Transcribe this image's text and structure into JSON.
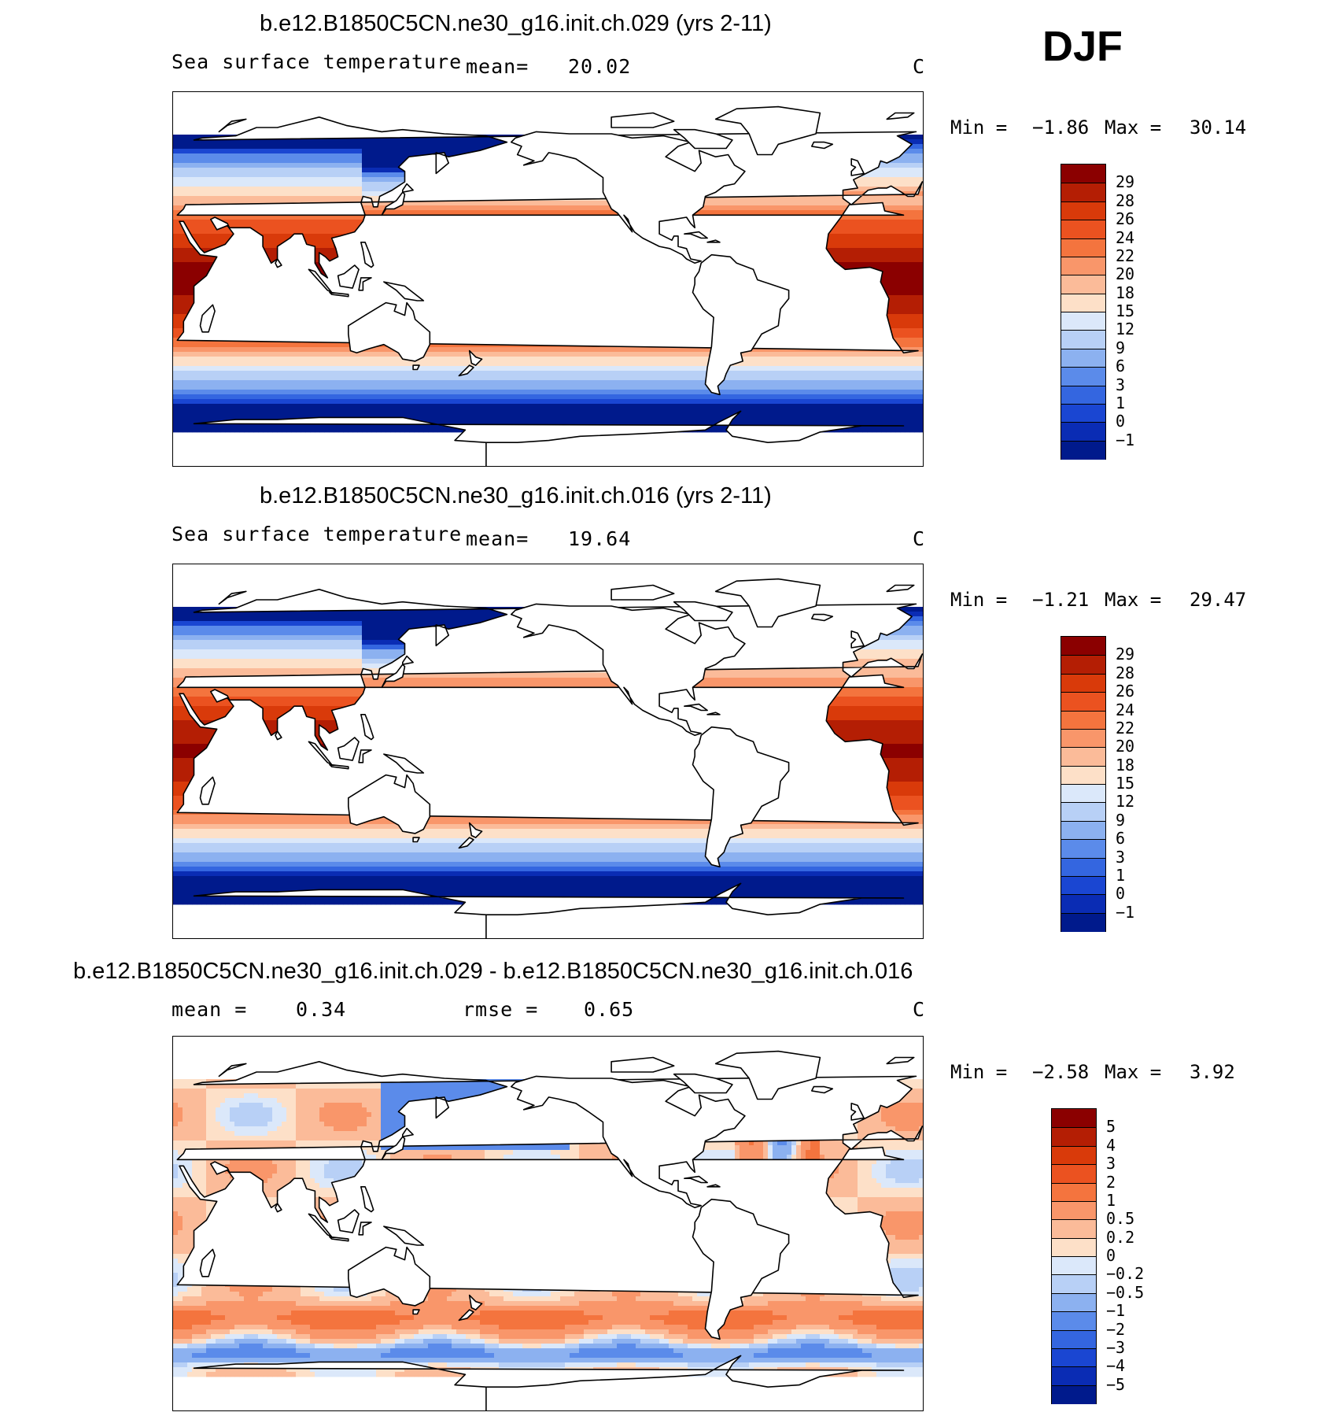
{
  "season": "DJF",
  "chart_data": [
    {
      "type": "heatmap",
      "title": "b.e12.B1850C5CN.ne30_g16.init.ch.029 (yrs 2-11)",
      "field": "Sea surface temperature",
      "mean_label": "mean=",
      "mean": "20.02",
      "units": "C",
      "min_label": "Min =",
      "min": "−1.86",
      "max_label": "Max =",
      "max": "30.14",
      "colorbar_levels": [
        "29",
        "28",
        "26",
        "24",
        "22",
        "20",
        "18",
        "15",
        "12",
        "9",
        "6",
        "3",
        "1",
        "0",
        "−1"
      ],
      "colorbar_colors": [
        "#8b0000",
        "#b41e04",
        "#d93a0a",
        "#eb5220",
        "#f4743e",
        "#f9966a",
        "#fbbb99",
        "#fde0c8",
        "#dbe8fa",
        "#b8d0f6",
        "#8cb1f0",
        "#5b8bea",
        "#3466e0",
        "#1a46d2",
        "#0a2cb4",
        "#001a8c"
      ],
      "data_range": [
        -1.86,
        30.14
      ]
    },
    {
      "type": "heatmap",
      "title": "b.e12.B1850C5CN.ne30_g16.init.ch.016 (yrs 2-11)",
      "field": "Sea surface temperature",
      "mean_label": "mean=",
      "mean": "19.64",
      "units": "C",
      "min_label": "Min =",
      "min": "−1.21",
      "max_label": "Max =",
      "max": "29.47",
      "colorbar_levels": [
        "29",
        "28",
        "26",
        "24",
        "22",
        "20",
        "18",
        "15",
        "12",
        "9",
        "6",
        "3",
        "1",
        "0",
        "−1"
      ],
      "colorbar_colors": [
        "#8b0000",
        "#b41e04",
        "#d93a0a",
        "#eb5220",
        "#f4743e",
        "#f9966a",
        "#fbbb99",
        "#fde0c8",
        "#dbe8fa",
        "#b8d0f6",
        "#8cb1f0",
        "#5b8bea",
        "#3466e0",
        "#1a46d2",
        "#0a2cb4",
        "#001a8c"
      ],
      "data_range": [
        -1.21,
        29.47
      ]
    },
    {
      "type": "heatmap",
      "title": "b.e12.B1850C5CN.ne30_g16.init.ch.029 - b.e12.B1850C5CN.ne30_g16.init.ch.016",
      "mean_label": "mean =",
      "mean": "0.34",
      "rmse_label": "rmse =",
      "rmse": "0.65",
      "units": "C",
      "min_label": "Min =",
      "min": "−2.58",
      "max_label": "Max =",
      "max": "3.92",
      "colorbar_levels": [
        "5",
        "4",
        "3",
        "2",
        "1",
        "0.5",
        "0.2",
        "0",
        "−0.2",
        "−0.5",
        "−1",
        "−2",
        "−3",
        "−4",
        "−5"
      ],
      "colorbar_colors": [
        "#8b0000",
        "#b41e04",
        "#d93a0a",
        "#eb5220",
        "#f4743e",
        "#f9966a",
        "#fbbb99",
        "#fde0c8",
        "#dbe8fa",
        "#b8d0f6",
        "#8cb1f0",
        "#5b8bea",
        "#3466e0",
        "#1a46d2",
        "#0a2cb4",
        "#001a8c"
      ],
      "data_range": [
        -2.58,
        3.92
      ]
    }
  ]
}
